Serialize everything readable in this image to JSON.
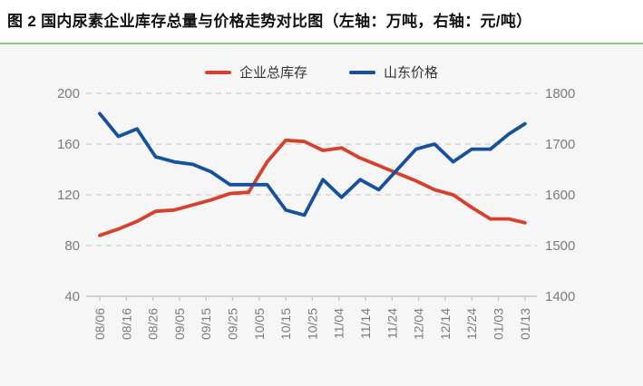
{
  "title": "图 2 国内尿素企业库存总量与价格走势对比图（左轴：万吨，右轴：元/吨）",
  "legend": [
    {
      "label": "企业总库存",
      "color": "#d6402c"
    },
    {
      "label": "山东价格",
      "color": "#16519f"
    }
  ],
  "colors": {
    "divider_green": "#92c879",
    "chart_background": "#f6f6f7",
    "title_background": "#ffffff",
    "grid_line": "#cccccc",
    "axis_text": "#7b7b7b",
    "series_inventory": "#d6402c",
    "series_price": "#16519f"
  },
  "chart_data": {
    "type": "line",
    "title": "图 2 国内尿素企业库存总量与价格走势对比图（左轴：万吨，右轴：元/吨）",
    "x_tick_labels": [
      "08/06",
      "08/16",
      "08/26",
      "09/05",
      "09/15",
      "09/25",
      "10/05",
      "10/15",
      "10/25",
      "11/04",
      "11/14",
      "11/24",
      "12/04",
      "12/14",
      "12/24",
      "01/03",
      "01/13"
    ],
    "x_tick_interval_days": 10,
    "x_span_days": 160,
    "grid": "dashed-horizontal",
    "legend_position": "top-center",
    "y_axis_left": {
      "unit": "万吨",
      "min": 40,
      "max": 200,
      "ticks": [
        200,
        160,
        120,
        80,
        40
      ]
    },
    "y_axis_right": {
      "unit": "元/吨",
      "min": 1400,
      "max": 1800,
      "ticks": [
        1800,
        1700,
        1600,
        1500,
        1400
      ]
    },
    "series": [
      {
        "name": "企业总库存",
        "axis": "left",
        "color": "#d6402c",
        "x_days": [
          0,
          7,
          14,
          21,
          28,
          35,
          42,
          49,
          56,
          63,
          70,
          77,
          84,
          91,
          98,
          105,
          112,
          119,
          126,
          133,
          140,
          147,
          154,
          160
        ],
        "values": [
          88,
          93,
          99,
          107,
          108,
          112,
          116,
          121,
          122,
          146,
          163,
          162,
          155,
          157,
          149,
          143,
          137,
          131,
          124,
          120,
          110,
          101,
          101,
          98
        ]
      },
      {
        "name": "山东价格",
        "axis": "right",
        "color": "#16519f",
        "x_days": [
          0,
          7,
          14,
          21,
          28,
          35,
          42,
          49,
          56,
          63,
          70,
          77,
          84,
          91,
          98,
          105,
          112,
          119,
          126,
          133,
          140,
          147,
          154,
          160
        ],
        "values": [
          1760,
          1715,
          1730,
          1675,
          1665,
          1660,
          1645,
          1620,
          1620,
          1620,
          1570,
          1560,
          1630,
          1595,
          1630,
          1610,
          1650,
          1690,
          1700,
          1665,
          1690,
          1690,
          1720,
          1740
        ]
      }
    ]
  }
}
